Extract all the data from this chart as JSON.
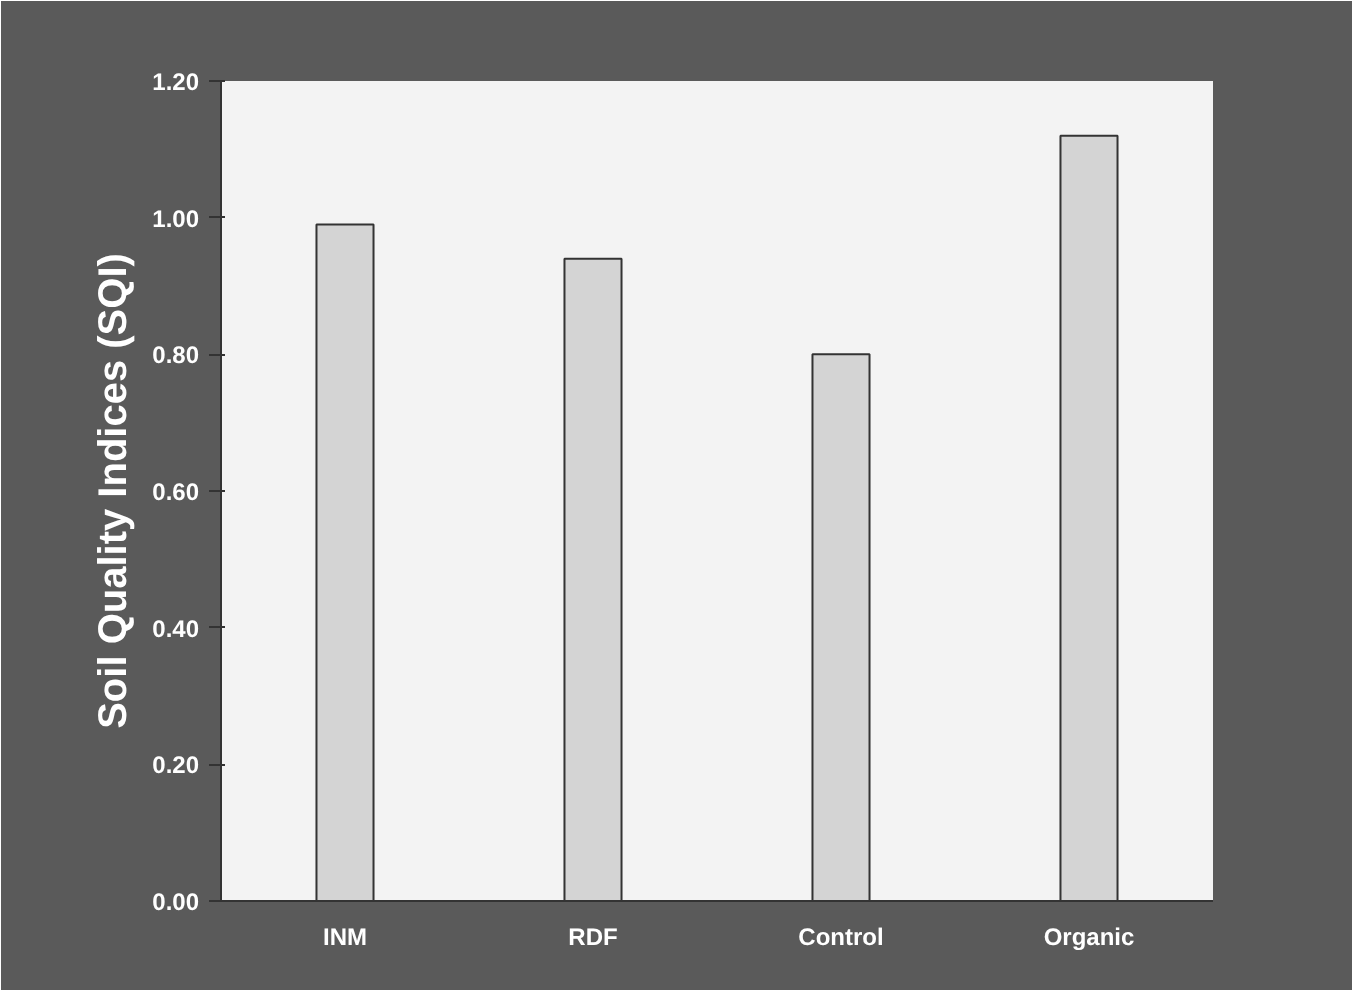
{
  "chart_data": {
    "type": "bar",
    "ylabel": "Soil Quality Indices (SQI)",
    "categories": [
      "INM",
      "RDF",
      "Control",
      "Organic"
    ],
    "values": [
      0.99,
      0.94,
      0.8,
      1.12
    ],
    "color": "#d4d4d4",
    "ylim": [
      0,
      1.2
    ],
    "yticks": [
      {
        "value": 0,
        "label": "0.00"
      },
      {
        "value": 0.2,
        "label": "0.20"
      },
      {
        "value": 0.4,
        "label": "0.40"
      },
      {
        "value": 0.6,
        "label": "0.60"
      },
      {
        "value": 0.8,
        "label": "0.80"
      },
      {
        "value": 1.0,
        "label": "1.00"
      },
      {
        "value": 1.2,
        "label": "1.20"
      }
    ],
    "grid": false
  }
}
